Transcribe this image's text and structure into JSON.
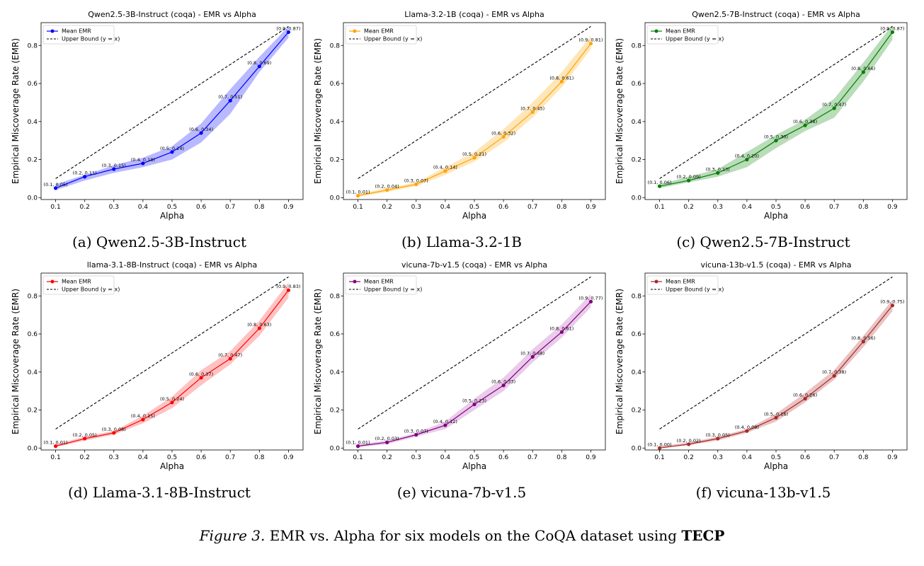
{
  "chart_data": [
    {
      "type": "line",
      "title": "Qwen2.5-3B-Instruct (coqa) - EMR vs Alpha",
      "xlabel": "Alpha",
      "ylabel": "Empirical Miscoverage Rate (EMR)",
      "x": [
        0.1,
        0.2,
        0.3,
        0.4,
        0.5,
        0.6,
        0.7,
        0.8,
        0.9
      ],
      "xlim": [
        0.05,
        0.95
      ],
      "ylim": [
        -0.01,
        0.92
      ],
      "xticks": [
        "0.1",
        "0.2",
        "0.3",
        "0.4",
        "0.5",
        "0.6",
        "0.7",
        "0.8",
        "0.9"
      ],
      "yticks": [
        "0.0",
        "0.2",
        "0.4",
        "0.6",
        "0.8"
      ],
      "series": [
        {
          "name": "Mean EMR",
          "values": [
            0.05,
            0.11,
            0.15,
            0.18,
            0.24,
            0.34,
            0.51,
            0.69,
            0.87
          ],
          "lower": [
            0.04,
            0.09,
            0.13,
            0.16,
            0.2,
            0.29,
            0.44,
            0.66,
            0.84
          ],
          "upper": [
            0.07,
            0.12,
            0.17,
            0.21,
            0.27,
            0.39,
            0.57,
            0.74,
            0.9
          ]
        },
        {
          "name": "Upper Bound (y = x)",
          "values": [
            0.1,
            0.2,
            0.3,
            0.4,
            0.5,
            0.6,
            0.7,
            0.8,
            0.9
          ]
        }
      ],
      "point_labels": [
        "(0.1, 0.05)",
        "(0.2, 0.11)",
        "(0.3, 0.15)",
        "(0.4, 0.18)",
        "(0.5, 0.24)",
        "(0.6, 0.34)",
        "(0.7, 0.51)",
        "(0.8, 0.69)",
        "(0.9, 0.87)"
      ],
      "color": "#0000ff",
      "band_color": "#8080ff",
      "legend": "upper-left",
      "grid": false,
      "caption": "(a)  Qwen2.5-3B-Instruct"
    },
    {
      "type": "line",
      "title": "Llama-3.2-1B (coqa) - EMR vs Alpha",
      "xlabel": "Alpha",
      "ylabel": "Empirical Miscoverage Rate (EMR)",
      "x": [
        0.1,
        0.2,
        0.3,
        0.4,
        0.5,
        0.6,
        0.7,
        0.8,
        0.9
      ],
      "xlim": [
        0.05,
        0.95
      ],
      "ylim": [
        -0.01,
        0.92
      ],
      "xticks": [
        "0.1",
        "0.2",
        "0.3",
        "0.4",
        "0.5",
        "0.6",
        "0.7",
        "0.8",
        "0.9"
      ],
      "yticks": [
        "0.0",
        "0.2",
        "0.4",
        "0.6",
        "0.8"
      ],
      "series": [
        {
          "name": "Mean EMR",
          "values": [
            0.01,
            0.04,
            0.07,
            0.14,
            0.21,
            0.32,
            0.45,
            0.61,
            0.81
          ],
          "lower": [
            0.005,
            0.03,
            0.06,
            0.12,
            0.19,
            0.29,
            0.42,
            0.58,
            0.78
          ],
          "upper": [
            0.02,
            0.05,
            0.08,
            0.16,
            0.24,
            0.36,
            0.5,
            0.66,
            0.85
          ]
        },
        {
          "name": "Upper Bound (y = x)",
          "values": [
            0.1,
            0.2,
            0.3,
            0.4,
            0.5,
            0.6,
            0.7,
            0.8,
            0.9
          ]
        }
      ],
      "point_labels": [
        "(0.1, 0.01)",
        "(0.2, 0.04)",
        "(0.3, 0.07)",
        "(0.4, 0.14)",
        "(0.5, 0.21)",
        "(0.6, 0.32)",
        "(0.7, 0.45)",
        "(0.8, 0.61)",
        "(0.9, 0.81)"
      ],
      "color": "#ffa500",
      "band_color": "#ffd27f",
      "legend": "upper-left",
      "grid": false,
      "caption": "(b)  Llama-3.2-1B"
    },
    {
      "type": "line",
      "title": "Qwen2.5-7B-Instruct (coqa) - EMR vs Alpha",
      "xlabel": "Alpha",
      "ylabel": "Empirical Miscoverage Rate (EMR)",
      "x": [
        0.1,
        0.2,
        0.3,
        0.4,
        0.5,
        0.6,
        0.7,
        0.8,
        0.9
      ],
      "xlim": [
        0.05,
        0.95
      ],
      "ylim": [
        -0.01,
        0.92
      ],
      "xticks": [
        "0.1",
        "0.2",
        "0.3",
        "0.4",
        "0.5",
        "0.6",
        "0.7",
        "0.8",
        "0.9"
      ],
      "yticks": [
        "0.0",
        "0.2",
        "0.4",
        "0.6",
        "0.8"
      ],
      "series": [
        {
          "name": "Mean EMR",
          "values": [
            0.06,
            0.09,
            0.13,
            0.2,
            0.3,
            0.38,
            0.47,
            0.66,
            0.87
          ],
          "lower": [
            0.05,
            0.08,
            0.11,
            0.16,
            0.26,
            0.35,
            0.42,
            0.61,
            0.83
          ],
          "upper": [
            0.07,
            0.11,
            0.15,
            0.24,
            0.33,
            0.41,
            0.52,
            0.71,
            0.91
          ]
        },
        {
          "name": "Upper Bound (y = x)",
          "values": [
            0.1,
            0.2,
            0.3,
            0.4,
            0.5,
            0.6,
            0.7,
            0.8,
            0.9
          ]
        }
      ],
      "point_labels": [
        "(0.1, 0.06)",
        "(0.2, 0.09)",
        "(0.3, 0.13)",
        "(0.4, 0.20)",
        "(0.5, 0.30)",
        "(0.6, 0.38)",
        "(0.7, 0.47)",
        "(0.8, 0.66)",
        "(0.9, 0.87)"
      ],
      "color": "#008000",
      "band_color": "#80c080",
      "legend": "upper-left",
      "grid": false,
      "caption": "(c)  Qwen2.5-7B-Instruct"
    },
    {
      "type": "line",
      "title": "llama-3.1-8B-Instruct (coqa) - EMR vs Alpha",
      "xlabel": "Alpha",
      "ylabel": "Empirical Miscoverage Rate (EMR)",
      "x": [
        0.1,
        0.2,
        0.3,
        0.4,
        0.5,
        0.6,
        0.7,
        0.8,
        0.9
      ],
      "xlim": [
        0.05,
        0.95
      ],
      "ylim": [
        -0.01,
        0.92
      ],
      "xticks": [
        "0.1",
        "0.2",
        "0.3",
        "0.4",
        "0.5",
        "0.6",
        "0.7",
        "0.8",
        "0.9"
      ],
      "yticks": [
        "0.0",
        "0.2",
        "0.4",
        "0.6",
        "0.8"
      ],
      "series": [
        {
          "name": "Mean EMR",
          "values": [
            0.01,
            0.05,
            0.08,
            0.15,
            0.24,
            0.37,
            0.47,
            0.63,
            0.83
          ],
          "lower": [
            0.005,
            0.04,
            0.07,
            0.13,
            0.21,
            0.33,
            0.44,
            0.59,
            0.79
          ],
          "upper": [
            0.02,
            0.06,
            0.09,
            0.17,
            0.27,
            0.41,
            0.51,
            0.67,
            0.87
          ]
        },
        {
          "name": "Upper Bound (y = x)",
          "values": [
            0.1,
            0.2,
            0.3,
            0.4,
            0.5,
            0.6,
            0.7,
            0.8,
            0.9
          ]
        }
      ],
      "point_labels": [
        "(0.1, 0.01)",
        "(0.2, 0.05)",
        "(0.3, 0.08)",
        "(0.4, 0.15)",
        "(0.5, 0.24)",
        "(0.6, 0.37)",
        "(0.7, 0.47)",
        "(0.8, 0.63)",
        "(0.9, 0.83)"
      ],
      "color": "#ff0000",
      "band_color": "#ff9090",
      "legend": "upper-left",
      "grid": false,
      "caption": "(d)  Llama-3.1-8B-Instruct"
    },
    {
      "type": "line",
      "title": "vicuna-7b-v1.5 (coqa) - EMR vs Alpha",
      "xlabel": "Alpha",
      "ylabel": "Empirical Miscoverage Rate (EMR)",
      "x": [
        0.1,
        0.2,
        0.3,
        0.4,
        0.5,
        0.6,
        0.7,
        0.8,
        0.9
      ],
      "xlim": [
        0.05,
        0.95
      ],
      "ylim": [
        -0.01,
        0.92
      ],
      "xticks": [
        "0.1",
        "0.2",
        "0.3",
        "0.4",
        "0.5",
        "0.6",
        "0.7",
        "0.8",
        "0.9"
      ],
      "yticks": [
        "0.0",
        "0.2",
        "0.4",
        "0.6",
        "0.8"
      ],
      "series": [
        {
          "name": "Mean EMR",
          "values": [
            0.01,
            0.03,
            0.07,
            0.12,
            0.23,
            0.33,
            0.48,
            0.61,
            0.77
          ],
          "lower": [
            0.005,
            0.02,
            0.06,
            0.1,
            0.2,
            0.3,
            0.45,
            0.58,
            0.74
          ],
          "upper": [
            0.02,
            0.04,
            0.08,
            0.14,
            0.26,
            0.37,
            0.52,
            0.65,
            0.81
          ]
        },
        {
          "name": "Upper Bound (y = x)",
          "values": [
            0.1,
            0.2,
            0.3,
            0.4,
            0.5,
            0.6,
            0.7,
            0.8,
            0.9
          ]
        }
      ],
      "point_labels": [
        "(0.1, 0.01)",
        "(0.2, 0.03)",
        "(0.3, 0.07)",
        "(0.4, 0.12)",
        "(0.5, 0.23)",
        "(0.6, 0.33)",
        "(0.7, 0.48)",
        "(0.8, 0.61)",
        "(0.9, 0.77)"
      ],
      "color": "#800080",
      "band_color": "#d8a0d8",
      "legend": "upper-left",
      "grid": false,
      "caption": "(e)  vicuna-7b-v1.5"
    },
    {
      "type": "line",
      "title": "vicuna-13b-v1.5 (coqa) - EMR vs Alpha",
      "xlabel": "Alpha",
      "ylabel": "Empirical Miscoverage Rate (EMR)",
      "x": [
        0.1,
        0.2,
        0.3,
        0.4,
        0.5,
        0.6,
        0.7,
        0.8,
        0.9
      ],
      "xlim": [
        0.05,
        0.95
      ],
      "ylim": [
        -0.01,
        0.92
      ],
      "xticks": [
        "0.1",
        "0.2",
        "0.3",
        "0.4",
        "0.5",
        "0.6",
        "0.7",
        "0.8",
        "0.9"
      ],
      "yticks": [
        "0.0",
        "0.2",
        "0.4",
        "0.6",
        "0.8"
      ],
      "series": [
        {
          "name": "Mean EMR",
          "values": [
            0.0,
            0.02,
            0.05,
            0.09,
            0.16,
            0.26,
            0.38,
            0.56,
            0.75
          ],
          "lower": [
            0.0,
            0.015,
            0.04,
            0.08,
            0.14,
            0.24,
            0.36,
            0.53,
            0.72
          ],
          "upper": [
            0.01,
            0.03,
            0.06,
            0.1,
            0.18,
            0.29,
            0.41,
            0.59,
            0.78
          ]
        },
        {
          "name": "Upper Bound (y = x)",
          "values": [
            0.1,
            0.2,
            0.3,
            0.4,
            0.5,
            0.6,
            0.7,
            0.8,
            0.9
          ]
        }
      ],
      "point_labels": [
        "(0.1, 0.00)",
        "(0.2, 0.02)",
        "(0.3, 0.05)",
        "(0.4, 0.09)",
        "(0.5, 0.16)",
        "(0.6, 0.26)",
        "(0.7, 0.38)",
        "(0.8, 0.56)",
        "(0.9, 0.75)"
      ],
      "color": "#a52a2a",
      "band_color": "#d89090",
      "legend": "upper-left",
      "grid": false,
      "caption": "(f)  vicuna-13b-v1.5"
    }
  ],
  "figure_caption": {
    "prefix": "Figure 3.",
    "text": " EMR vs. Alpha for six models on the CoQA dataset using ",
    "bold": "TECP"
  }
}
